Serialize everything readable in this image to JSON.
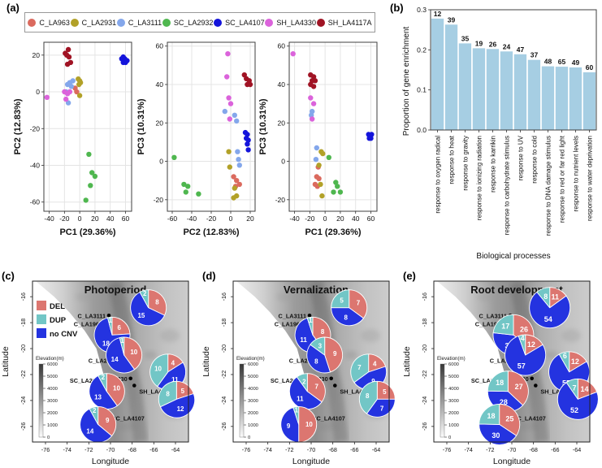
{
  "panel_labels": {
    "a": "(a)",
    "b": "(b)",
    "c": "(c)",
    "d": "(d)",
    "e": "(e)"
  },
  "accession_legend": [
    {
      "label": "C_LA963",
      "color": "#DB6A5E"
    },
    {
      "label": "C_LA2931",
      "color": "#B2A128"
    },
    {
      "label": "C_LA3111",
      "color": "#84A7EB"
    },
    {
      "label": "SC_LA2932",
      "color": "#4FB74F"
    },
    {
      "label": "SC_LA4107",
      "color": "#1414DB"
    },
    {
      "label": "SH_LA4330",
      "color": "#DB63DB"
    },
    {
      "label": "SH_LA4117A",
      "color": "#A01324"
    }
  ],
  "map_base": {
    "xlabel": "Longitude",
    "ylabel": "Latitude",
    "xticks": [
      -76,
      -74,
      -72,
      -70,
      -68,
      -66,
      -64
    ],
    "yticks": [
      -16,
      -18,
      -20,
      -22,
      -24,
      -26
    ],
    "lon_range": [
      -77.2,
      -62.8
    ],
    "lat_range": [
      -14.8,
      -27.2
    ],
    "cnv_legend": [
      {
        "label": "DEL",
        "color": "#DC7670"
      },
      {
        "label": "DUP",
        "color": "#72C6C6"
      },
      {
        "label": "no CNV",
        "color": "#2433E0"
      }
    ],
    "elevation": {
      "title": "Elevation(m)",
      "ticks": [
        6000,
        5000,
        4000,
        3000,
        2000,
        1000,
        0
      ]
    },
    "sites": [
      {
        "name": "C_LA3111",
        "dot": [
          -70.15,
          -17.45
        ],
        "pie": [
          -66.5,
          -16.85
        ],
        "label_side": "left"
      },
      {
        "name": "C_LA1963",
        "dot": [
          -70.45,
          -18.1
        ],
        "pie": [
          -69.85,
          -18.95
        ],
        "label_side": "left"
      },
      {
        "name": "C_LA2931",
        "dot": [
          -69.1,
          -20.9
        ],
        "pie": [
          -68.75,
          -20.5
        ],
        "label_side": "left"
      },
      {
        "name": "SH_LA4330",
        "dot": [
          -68.15,
          -22.3
        ],
        "pie": [
          -64.7,
          -21.8
        ],
        "label_side": "left"
      },
      {
        "name": "SH_LA4117A",
        "dot": [
          -67.8,
          -22.85
        ],
        "pie": [
          -63.9,
          -23.9
        ],
        "label_side": "right_below"
      },
      {
        "name": "SC_LA2932",
        "dot": [
          -70.45,
          -22.45
        ],
        "pie": [
          -70.35,
          -23.3
        ],
        "label_side": "left"
      },
      {
        "name": "SC_LA4107",
        "dot": [
          -70.25,
          -25.35
        ],
        "pie": [
          -71.15,
          -25.85
        ],
        "label_side": "right"
      }
    ],
    "coast": [
      [
        -76.9,
        -14.8
      ],
      [
        -75.2,
        -16.0
      ],
      [
        -73.8,
        -17.2
      ],
      [
        -72.4,
        -18.6
      ],
      [
        -71.3,
        -20.0
      ],
      [
        -70.8,
        -21.5
      ],
      [
        -70.3,
        -23.0
      ],
      [
        -70.5,
        -24.5
      ],
      [
        -70.9,
        -26.0
      ],
      [
        -71.2,
        -27.2
      ]
    ]
  },
  "chart_data": [
    {
      "type": "scatter",
      "id": "pca-pc1-pc2",
      "xlabel": "PC1 (29.36%)",
      "ylabel": "PC2 (12.83%)",
      "xlim": [
        -47,
        68
      ],
      "ylim": [
        -65,
        27
      ],
      "xticks": [
        -40,
        -20,
        0,
        20,
        40,
        60
      ],
      "yticks": [
        -60,
        -40,
        -20,
        0,
        20
      ],
      "series": [
        {
          "name": "C_LA963",
          "color": "#DB6A5E",
          "points": [
            [
              -6,
              2
            ],
            [
              -4,
              0
            ]
          ]
        },
        {
          "name": "C_LA2931",
          "color": "#B2A128",
          "points": [
            [
              -2,
              7
            ],
            [
              0,
              6
            ],
            [
              1,
              5
            ],
            [
              -1,
              4
            ],
            [
              0,
              -2
            ]
          ]
        },
        {
          "name": "C_LA3111",
          "color": "#84A7EB",
          "points": [
            [
              -9,
              6
            ],
            [
              -13,
              5
            ],
            [
              -16,
              4
            ],
            [
              -11,
              3
            ],
            [
              -18,
              0
            ],
            [
              -15,
              -6
            ]
          ]
        },
        {
          "name": "SC_LA2932",
          "color": "#4FB74F",
          "points": [
            [
              12,
              -34
            ],
            [
              16,
              -44
            ],
            [
              20,
              -46
            ],
            [
              14,
              -51
            ],
            [
              8,
              -59
            ]
          ]
        },
        {
          "name": "SC_LA4107",
          "color": "#1414DB",
          "points": [
            [
              55,
              18
            ],
            [
              57,
              19
            ],
            [
              59,
              18
            ],
            [
              61,
              17
            ],
            [
              57,
              16
            ],
            [
              60,
              16
            ],
            [
              62,
              17
            ]
          ]
        },
        {
          "name": "SH_LA4330",
          "color": "#DB63DB",
          "points": [
            [
              -43,
              -3
            ],
            [
              -20,
              0
            ],
            [
              -16,
              -1
            ],
            [
              -13,
              0
            ],
            [
              -18,
              -4
            ]
          ]
        },
        {
          "name": "SH_LA4117A",
          "color": "#A01324",
          "points": [
            [
              -15,
              23
            ],
            [
              -19,
              21
            ],
            [
              -17,
              20
            ],
            [
              -14,
              19
            ],
            [
              -12,
              16
            ],
            [
              -16,
              15
            ]
          ]
        }
      ]
    },
    {
      "type": "scatter",
      "id": "pca-pc2-pc3",
      "xlabel": "PC2 (12.83%)",
      "ylabel": "PC3 (10.31%)",
      "xlim": [
        -65,
        25
      ],
      "ylim": [
        -26,
        62
      ],
      "xticks": [
        -60,
        -40,
        -20,
        0,
        20
      ],
      "yticks": [
        -20,
        0,
        20,
        40,
        60
      ],
      "series": [
        {
          "name": "C_LA963",
          "color": "#DB6A5E",
          "points": [
            [
              3,
              -8
            ],
            [
              9,
              -12
            ],
            [
              5,
              -13
            ],
            [
              6,
              -10
            ]
          ]
        },
        {
          "name": "C_LA2931",
          "color": "#B2A128",
          "points": [
            [
              -2,
              5
            ],
            [
              -1,
              -3
            ],
            [
              4,
              -14
            ],
            [
              6,
              -18
            ],
            [
              3,
              -19
            ]
          ]
        },
        {
          "name": "C_LA3111",
          "color": "#84A7EB",
          "points": [
            [
              -6,
              26
            ],
            [
              4,
              24
            ],
            [
              6,
              21
            ],
            [
              7,
              5
            ],
            [
              8,
              1
            ],
            [
              9,
              -2
            ]
          ]
        },
        {
          "name": "SC_LA2932",
          "color": "#4FB74F",
          "points": [
            [
              -58,
              2
            ],
            [
              -48,
              -12
            ],
            [
              -44,
              -13
            ],
            [
              -46,
              -16
            ],
            [
              -33,
              -17
            ]
          ]
        },
        {
          "name": "SC_LA4107",
          "color": "#1414DB",
          "points": [
            [
              15,
              15
            ],
            [
              17,
              14
            ],
            [
              16,
              12
            ],
            [
              18,
              11
            ],
            [
              17,
              9
            ],
            [
              18,
              6
            ]
          ]
        },
        {
          "name": "SH_LA4330",
          "color": "#DB63DB",
          "points": [
            [
              -3,
              56
            ],
            [
              -4,
              44
            ],
            [
              -2,
              33
            ],
            [
              0,
              30
            ],
            [
              -1,
              22
            ]
          ]
        },
        {
          "name": "SH_LA4117A",
          "color": "#A01324",
          "points": [
            [
              14,
              45
            ],
            [
              16,
              43
            ],
            [
              19,
              42
            ],
            [
              17,
              40
            ],
            [
              20,
              40
            ]
          ]
        }
      ]
    },
    {
      "type": "scatter",
      "id": "pca-pc1-pc3",
      "xlabel": "PC1 (29.36%)",
      "ylabel": "PC3 (10.31%)",
      "xlim": [
        -47,
        68
      ],
      "ylim": [
        -26,
        62
      ],
      "xticks": [
        -40,
        -20,
        0,
        20,
        40,
        60
      ],
      "yticks": [
        -20,
        0,
        20,
        40,
        60
      ],
      "series": [
        {
          "name": "C_LA963",
          "color": "#DB6A5E",
          "points": [
            [
              -9,
              -3
            ],
            [
              -11,
              -8
            ],
            [
              -8,
              -9
            ],
            [
              -13,
              -12
            ],
            [
              -10,
              -13
            ]
          ]
        },
        {
          "name": "C_LA2931",
          "color": "#B2A128",
          "points": [
            [
              -5,
              5
            ],
            [
              -3,
              4
            ],
            [
              -8,
              -2
            ],
            [
              -6,
              -12
            ],
            [
              -4,
              -18
            ]
          ]
        },
        {
          "name": "C_LA3111",
          "color": "#84A7EB",
          "points": [
            [
              -17,
              26
            ],
            [
              -18,
              24
            ],
            [
              -11,
              7
            ],
            [
              -12,
              1
            ]
          ]
        },
        {
          "name": "SC_LA2932",
          "color": "#4FB74F",
          "points": [
            [
              5,
              2
            ],
            [
              14,
              -11
            ],
            [
              16,
              -13
            ],
            [
              11,
              -16
            ],
            [
              20,
              -16
            ]
          ]
        },
        {
          "name": "SC_LA4107",
          "color": "#1414DB",
          "points": [
            [
              57,
              14
            ],
            [
              59,
              13
            ],
            [
              61,
              14
            ],
            [
              58,
              12
            ],
            [
              60,
              12
            ]
          ]
        },
        {
          "name": "SH_LA4330",
          "color": "#DB63DB",
          "points": [
            [
              -42,
              56
            ],
            [
              -19,
              33
            ],
            [
              -15,
              30
            ],
            [
              -17,
              22
            ]
          ]
        },
        {
          "name": "SH_LA4117A",
          "color": "#A01324",
          "points": [
            [
              -19,
              45
            ],
            [
              -15,
              44
            ],
            [
              -13,
              42
            ],
            [
              -17,
              42
            ],
            [
              -19,
              40
            ],
            [
              -15,
              39
            ]
          ]
        }
      ]
    },
    {
      "type": "bar",
      "id": "go-bar",
      "xlabel": "Biological processes",
      "ylabel": "Proportion of gene enrichment",
      "ylim": [
        0,
        0.3
      ],
      "yticks": [
        0,
        0.1,
        0.2,
        0.3
      ],
      "bar_color": "#A6CEE3",
      "categories": [
        "response to oxygen radical",
        "response to heat",
        "response to gravity",
        "response to ionizing radiation",
        "response to karrikin",
        "response to carbohydrate stimulus",
        "response to UV",
        "response to cold",
        "response to DNA damage stimulus",
        "response to red or far red light",
        "response to nutrient levels",
        "response to water deprivation"
      ],
      "values": [
        0.278,
        0.263,
        0.216,
        0.204,
        0.202,
        0.196,
        0.189,
        0.175,
        0.159,
        0.158,
        0.156,
        0.144
      ],
      "counts": [
        12,
        39,
        35,
        19,
        26,
        24,
        47,
        37,
        48,
        65,
        49,
        60
      ]
    },
    {
      "type": "pie-map",
      "id": "photoperiod",
      "title": "Photoperiod",
      "show_cnv_legend": true,
      "pie_radius": 22,
      "pies": [
        {
          "site": "C_LA3111",
          "DEL": 8,
          "DUP": 2,
          "no_CNV": 15
        },
        {
          "site": "C_LA1963",
          "DEL": 6,
          "DUP": 1,
          "no_CNV": 18
        },
        {
          "site": "C_LA2931",
          "DEL": 10,
          "DUP": 1,
          "no_CNV": 14
        },
        {
          "site": "SH_LA4330",
          "DEL": 4,
          "DUP": 10,
          "no_CNV": 11
        },
        {
          "site": "SH_LA4117A",
          "DEL": 5,
          "DUP": 8,
          "no_CNV": 12
        },
        {
          "site": "SC_LA2932",
          "DEL": 10,
          "DUP": 2,
          "no_CNV": 13
        },
        {
          "site": "SC_LA4107",
          "DEL": 9,
          "DUP": 2,
          "no_CNV": 14
        }
      ]
    },
    {
      "type": "pie-map",
      "id": "vernalization",
      "title": "Vernalization",
      "show_cnv_legend": false,
      "pie_radius": 22,
      "pies": [
        {
          "site": "C_LA3111",
          "DEL": 7,
          "DUP": 5,
          "no_CNV": 8
        },
        {
          "site": "C_LA1963",
          "DEL": 8,
          "DUP": 1,
          "no_CNV": 11
        },
        {
          "site": "C_LA2931",
          "DEL": 9,
          "DUP": 3,
          "no_CNV": 8
        },
        {
          "site": "SH_LA4330",
          "DEL": 4,
          "DUP": 7,
          "no_CNV": 9
        },
        {
          "site": "SH_LA4117A",
          "DEL": 5,
          "DUP": 8,
          "no_CNV": 7
        },
        {
          "site": "SC_LA2932",
          "DEL": 7,
          "DUP": 2,
          "no_CNV": 11
        },
        {
          "site": "SC_LA4107",
          "DEL": 10,
          "DUP": 1,
          "no_CNV": 9
        }
      ]
    },
    {
      "type": "pie-map",
      "id": "root-development",
      "title": "Root development",
      "show_cnv_legend": false,
      "pie_radius": 25,
      "pies": [
        {
          "site": "C_LA3111",
          "DEL": 11,
          "DUP": 8,
          "no_CNV": 54
        },
        {
          "site": "C_LA1963",
          "DEL": 26,
          "DUP": 17,
          "no_CNV": 30
        },
        {
          "site": "C_LA2931",
          "DEL": 12,
          "DUP": 4,
          "no_CNV": 57
        },
        {
          "site": "SH_LA4330",
          "DEL": 12,
          "DUP": 6,
          "no_CNV": 55
        },
        {
          "site": "SH_LA4117A",
          "DEL": 14,
          "DUP": 7,
          "no_CNV": 52
        },
        {
          "site": "SC_LA2932",
          "DEL": 27,
          "DUP": 18,
          "no_CNV": 28
        },
        {
          "site": "SC_LA4107",
          "DEL": 25,
          "DUP": 18,
          "no_CNV": 30
        }
      ]
    }
  ]
}
